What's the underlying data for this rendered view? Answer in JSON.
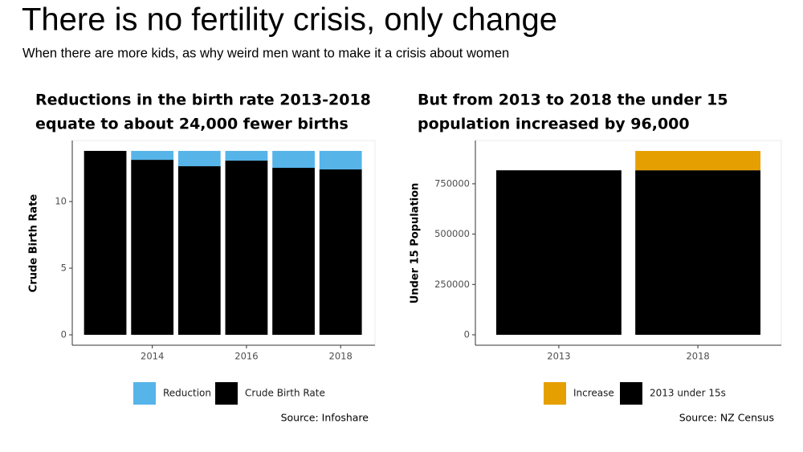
{
  "header": {
    "title": "There is no fertility crisis, only change",
    "subtitle": "When there are more kids, as why weird men want to make it a crisis about women"
  },
  "chart_data": [
    {
      "type": "bar",
      "stacked": true,
      "title": [
        "Reductions in the birth rate 2013-2018",
        "equate to about 24,000 fewer births"
      ],
      "y_label": "Crude Birth Rate",
      "x": [
        2013,
        2014,
        2015,
        2016,
        2017,
        2018
      ],
      "xlim": [
        2012.3,
        2018.73
      ],
      "xticks": [
        2014,
        2016,
        2018
      ],
      "ylim": [
        -0.78,
        14.58
      ],
      "yticks": [
        0,
        5,
        10
      ],
      "series": [
        {
          "name": "Reduction",
          "color": "#56b4e9",
          "values": [
            0,
            0.67,
            1.15,
            0.73,
            1.27,
            1.39
          ]
        },
        {
          "name": "Crude Birth Rate",
          "color": "#000000",
          "values": [
            13.8,
            13.13,
            12.65,
            13.07,
            12.53,
            12.41
          ]
        }
      ],
      "source": "Source: Infoshare"
    },
    {
      "type": "bar",
      "stacked": true,
      "title": [
        "But from 2013 to 2018 the under 15",
        "population increased by 96,000"
      ],
      "y_label": "Under 15 Population",
      "categories": [
        "2013",
        "2018"
      ],
      "ylim": [
        -51800,
        965000
      ],
      "yticks": [
        0,
        250000,
        500000,
        750000
      ],
      "series": [
        {
          "name": "Increase",
          "color": "#e69f00",
          "values": [
            0,
            96000
          ]
        },
        {
          "name": "2013 under 15s",
          "color": "#000000",
          "values": [
            817000,
            817000
          ]
        }
      ],
      "source": "Source: NZ Census"
    }
  ]
}
